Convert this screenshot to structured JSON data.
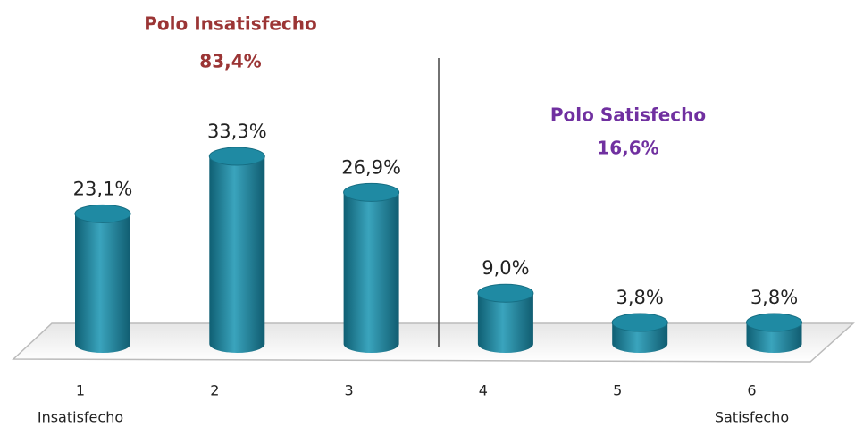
{
  "chart_data": {
    "type": "bar",
    "style": "cylinder",
    "categories": [
      "1",
      "2",
      "3",
      "4",
      "5",
      "6"
    ],
    "category_sublabels": [
      "Insatisfecho",
      null,
      null,
      null,
      null,
      "Satisfecho"
    ],
    "values": [
      23.1,
      33.3,
      26.9,
      9.0,
      3.8,
      3.8
    ],
    "value_labels": [
      "23,1%",
      "33,3%",
      "26,9%",
      "9,0%",
      "3,8%",
      "3,8%"
    ],
    "color": "#1b7f96",
    "annotations": [
      {
        "text": "Polo Insatisfecho",
        "value": "83,4%",
        "color": "#9b3535"
      },
      {
        "text": "Polo Satisfecho",
        "value": "16,6%",
        "color": "#7030a0"
      }
    ]
  }
}
